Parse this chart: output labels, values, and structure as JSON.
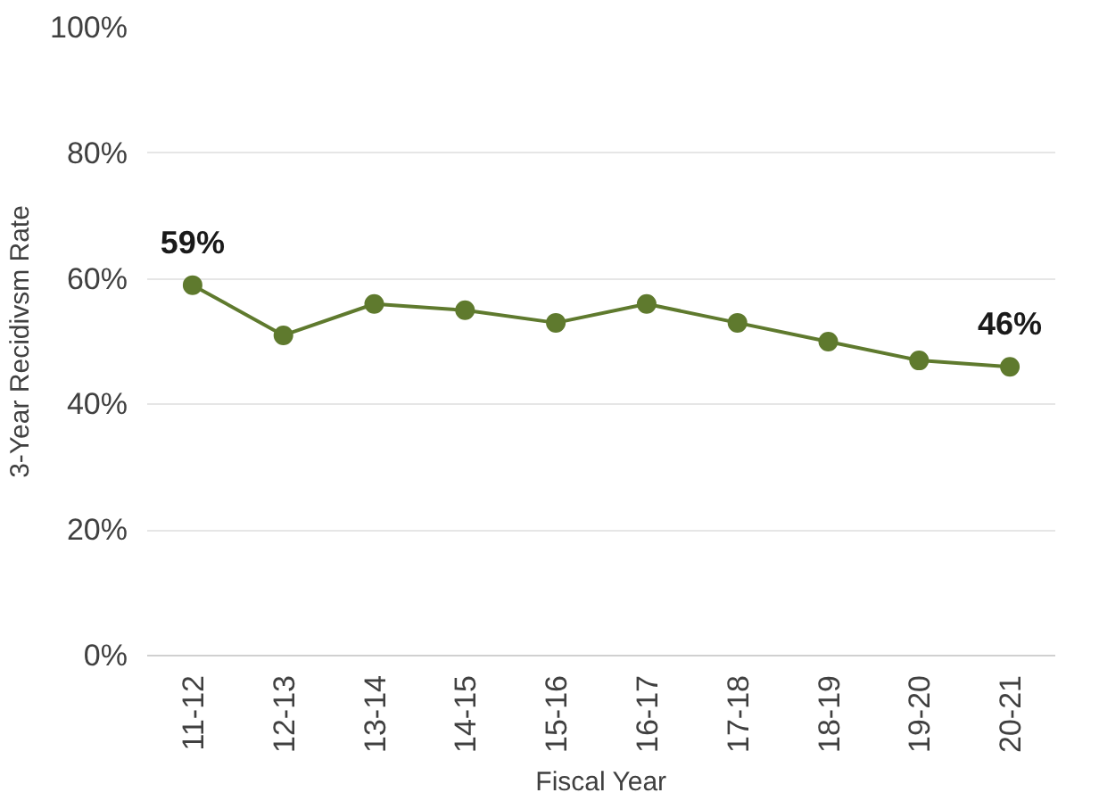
{
  "chart_data": {
    "type": "line",
    "xlabel": "Fiscal Year",
    "ylabel": "3-Year Recidivsm Rate",
    "categories": [
      "11-12",
      "12-13",
      "13-14",
      "14-15",
      "15-16",
      "16-17",
      "17-18",
      "18-19",
      "19-20",
      "20-21"
    ],
    "series": [
      {
        "color": "#5f7a2e",
        "values": [
          59,
          51,
          56,
          55,
          53,
          56,
          53,
          50,
          47,
          46
        ],
        "value_labels": [
          "59%",
          null,
          null,
          null,
          null,
          null,
          null,
          null,
          null,
          "46%"
        ]
      }
    ],
    "ylim": [
      0,
      100
    ],
    "yticks": [
      {
        "value": 0,
        "label": "0%"
      },
      {
        "value": 20,
        "label": "20%"
      },
      {
        "value": 40,
        "label": "40%"
      },
      {
        "value": 60,
        "label": "60%"
      },
      {
        "value": 80,
        "label": "80%"
      },
      {
        "value": 100,
        "label": "100%"
      }
    ],
    "grid": "y",
    "marker": "circle",
    "line_style": "solid"
  }
}
